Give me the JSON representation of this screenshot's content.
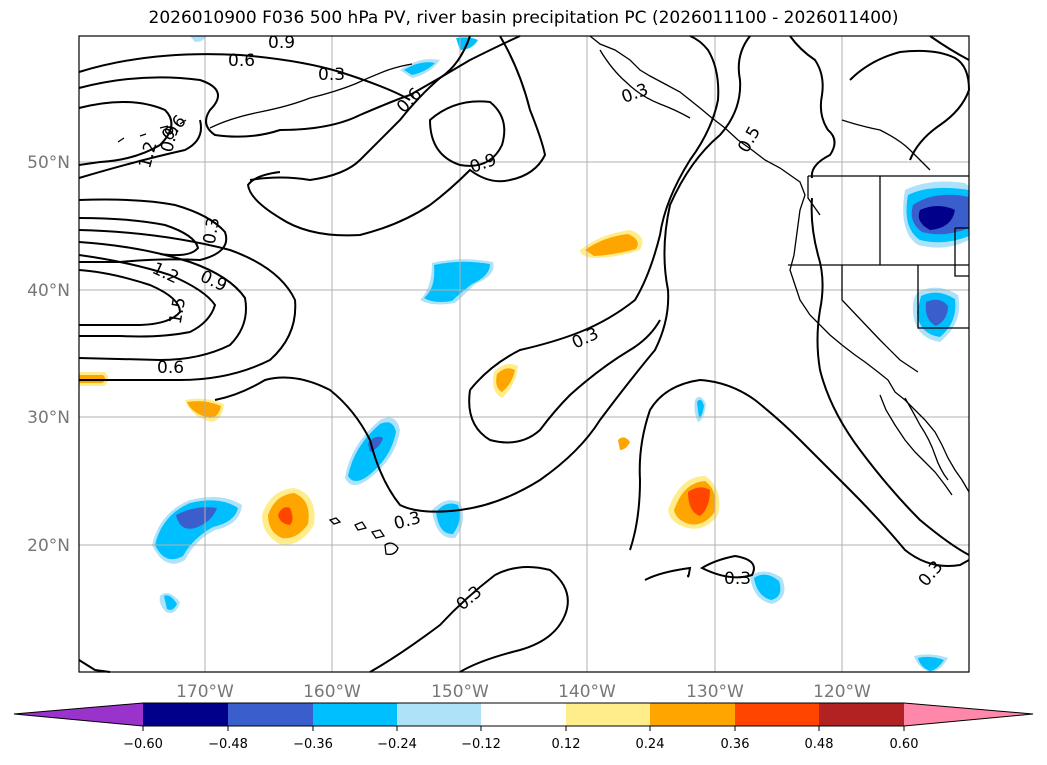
{
  "title": "2026010900 F036 500 hPa PV, river basin precipitation PC (2026011100 - 2026011400)",
  "lat_labels": [
    "50°N",
    "40°N",
    "30°N",
    "20°N"
  ],
  "lon_labels": [
    "170°W",
    "160°W",
    "150°W",
    "140°W",
    "130°W",
    "120°W"
  ],
  "contour_labels": [
    "0.9",
    "0.6",
    "0.3",
    "0.6",
    "0.6",
    "0.9",
    "1.2",
    "0.9",
    "0.3",
    "0.3",
    "1.2",
    "0.9",
    "1.5",
    "0.6",
    "0.3",
    "0.3",
    "0.3",
    "0.3",
    "0.3",
    "0.5"
  ],
  "colorbar": {
    "ticks": [
      "−0.60",
      "−0.48",
      "−0.36",
      "−0.24",
      "−0.12",
      "0.12",
      "0.24",
      "0.36",
      "0.48",
      "0.60"
    ],
    "colors": [
      "#9933cc",
      "#00008b",
      "#3a5fcd",
      "#00bfff",
      "#aee2f8",
      "#ffffff",
      "#ffec8b",
      "#ffa500",
      "#ff4500",
      "#b22222",
      "#ff88aa"
    ]
  }
}
